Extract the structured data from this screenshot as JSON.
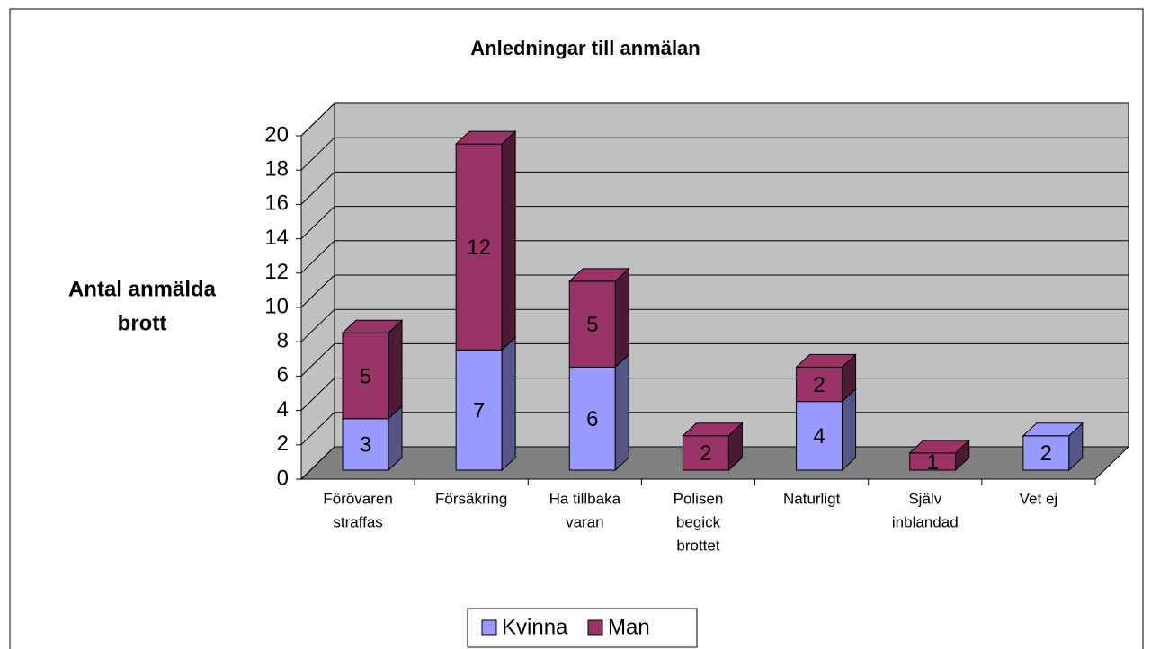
{
  "chart_data": {
    "type": "bar3d_stacked",
    "title": "Anledningar till anmälan",
    "ylabel": [
      "Antal anmälda",
      "brott"
    ],
    "categories": [
      [
        "Förövaren",
        "straffas"
      ],
      [
        "Försäkring"
      ],
      [
        "Ha tillbaka",
        "varan"
      ],
      [
        "Polisen",
        "begick",
        "brottet"
      ],
      [
        "Naturligt"
      ],
      [
        "Själv",
        "inblandad"
      ],
      [
        "Vet ej"
      ]
    ],
    "series": [
      {
        "name": "Kvinna",
        "color": "#9999ff",
        "side": "#555588",
        "values": [
          3,
          7,
          6,
          null,
          4,
          null,
          2
        ]
      },
      {
        "name": "Man",
        "color": "#993366",
        "side": "#4d1a33",
        "values": [
          5,
          12,
          5,
          2,
          2,
          1,
          null
        ]
      }
    ],
    "ylim": [
      0,
      20
    ],
    "yticks": [
      0,
      2,
      4,
      6,
      8,
      10,
      12,
      14,
      16,
      18,
      20
    ],
    "grid": true,
    "legend": "bottom"
  }
}
